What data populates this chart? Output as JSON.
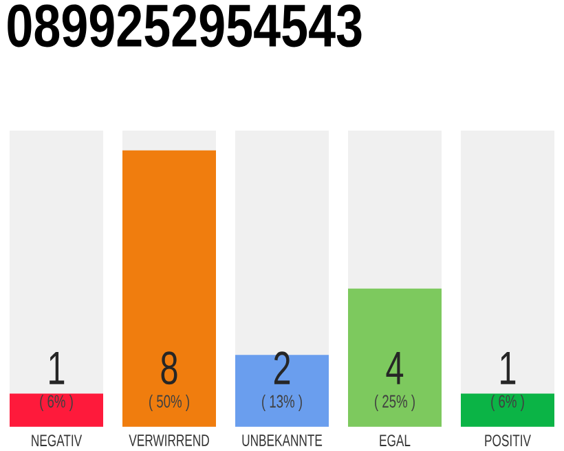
{
  "chart_data": {
    "type": "bar",
    "title": "0899252954543",
    "categories": [
      "NEGATIV",
      "VERWIRREND",
      "UNBEKANNTE",
      "EGAL",
      "POSITIV"
    ],
    "values": [
      6,
      50,
      13,
      25,
      6
    ],
    "colors": [
      "#fe1a3b",
      "#f07d0e",
      "#6a9eee",
      "#7dc95e",
      "#0bb446"
    ],
    "value_labels": [
      "( 6% )",
      "( 50% )",
      "( 13% )",
      "( 25% )",
      "( 6% )"
    ],
    "annotations": [
      "1",
      "8",
      "2",
      "4",
      "1"
    ]
  }
}
